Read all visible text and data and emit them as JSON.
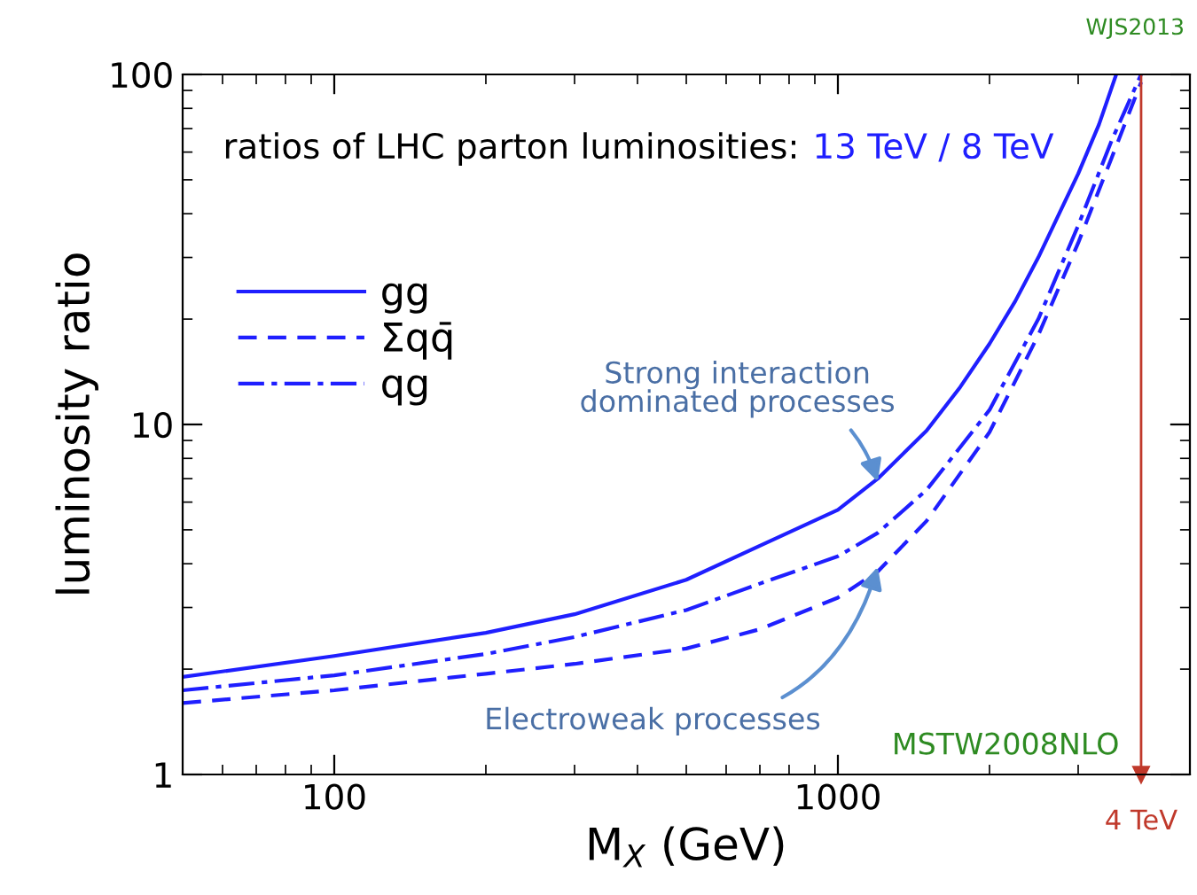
{
  "chart_data": {
    "type": "line",
    "title": "ratios of LHC parton luminosities:",
    "subtitle": "13 TeV / 8 TeV",
    "xlabel": "M$_{X}$ (GeV)",
    "ylabel": "luminosity ratio",
    "log": "xy",
    "grid": false,
    "legend": "left",
    "marker": "none",
    "xlim": [
      50,
      5000
    ],
    "ylim": [
      1,
      100
    ],
    "xticks": [
      {
        "value": 50,
        "label": null
      },
      {
        "value": 60,
        "label": null
      },
      {
        "value": 70,
        "label": null
      },
      {
        "value": 80,
        "label": null
      },
      {
        "value": 90,
        "label": null
      },
      100,
      {
        "value": 200,
        "label": null
      },
      {
        "value": 300,
        "label": null
      },
      {
        "value": 400,
        "label": null
      },
      {
        "value": 500,
        "label": null
      },
      {
        "value": 600,
        "label": null
      },
      {
        "value": 700,
        "label": null
      },
      {
        "value": 800,
        "label": null
      },
      {
        "value": 900,
        "label": null
      },
      1000,
      {
        "value": 2000,
        "label": null
      },
      {
        "value": 3000,
        "label": null
      },
      {
        "value": 4000,
        "label": null
      },
      {
        "value": 5000,
        "label": null
      }
    ],
    "yticks": [
      1,
      {
        "value": 2,
        "label": null
      },
      {
        "value": 3,
        "label": null
      },
      {
        "value": 4,
        "label": null
      },
      {
        "value": 5,
        "label": null
      },
      {
        "value": 6,
        "label": null
      },
      {
        "value": 7,
        "label": null
      },
      {
        "value": 8,
        "label": null
      },
      {
        "value": 9,
        "label": null
      },
      10,
      {
        "value": 20,
        "label": null
      },
      {
        "value": 30,
        "label": null
      },
      {
        "value": 40,
        "label": null
      },
      {
        "value": 50,
        "label": null
      },
      {
        "value": 60,
        "label": null
      },
      {
        "value": 70,
        "label": null
      },
      {
        "value": 80,
        "label": null
      },
      {
        "value": 90,
        "label": null
      },
      100
    ],
    "series": [
      {
        "name": "gg",
        "color": "#1f1fff",
        "line_style": "solid",
        "x": [
          50,
          100,
          200,
          300,
          500,
          700,
          1000,
          1200,
          1500,
          1750,
          2000,
          2250,
          2500,
          2750,
          3000,
          3300,
          3570
        ],
        "values": [
          1.9,
          2.18,
          2.54,
          2.87,
          3.6,
          4.5,
          5.7,
          7.0,
          9.6,
          12.8,
          17,
          22.5,
          30,
          40,
          52,
          72,
          100
        ]
      },
      {
        "name": "Σqq̄",
        "color": "#1f1fff",
        "line_style": "dashed",
        "x": [
          50,
          100,
          200,
          300,
          500,
          700,
          1000,
          1200,
          1500,
          2000,
          2500,
          3000,
          3500,
          4000
        ],
        "values": [
          1.6,
          1.74,
          1.94,
          2.07,
          2.29,
          2.6,
          3.2,
          3.8,
          5.3,
          9.5,
          18,
          33,
          58,
          95
        ]
      },
      {
        "name": "qg",
        "color": "#1f1fff",
        "line_style": "dashdot",
        "x": [
          50,
          100,
          200,
          300,
          500,
          700,
          1000,
          1200,
          1500,
          2000,
          2500,
          3000,
          3500,
          4000
        ],
        "values": [
          1.74,
          1.92,
          2.21,
          2.47,
          2.95,
          3.51,
          4.2,
          4.9,
          6.5,
          11,
          20,
          37,
          65,
          100
        ]
      }
    ],
    "ref_lines": [
      {
        "axis": "x",
        "value": 4000,
        "label": "4 TeV",
        "color": "#c0392b"
      }
    ],
    "annotations": [
      {
        "text": "Strong interaction\ndominated processes",
        "x": 1200,
        "y": 7.0
      },
      {
        "text": "Electroweak processes",
        "x": 1200,
        "y": 4.0
      },
      "WJS2013",
      "MSTW2008NLO"
    ]
  }
}
